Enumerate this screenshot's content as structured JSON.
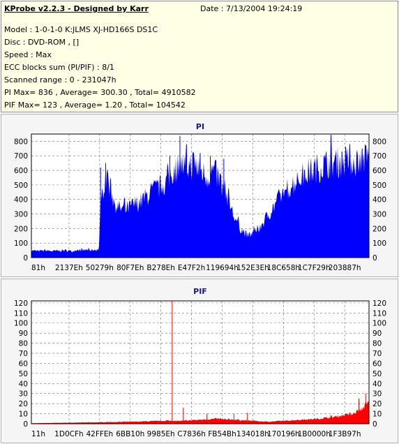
{
  "info": {
    "title": "KProbe v2.2.3 - Designed by Karr",
    "date": "Date : 7/13/2004 19:24:19",
    "lines": [
      "Model : 1-0-1-0 K:JLMS    XJ-HD166S        DS1C",
      "Disc : DVD-ROM ,  []",
      "Speed : Max",
      "ECC blocks sum (PI/PIF) : 8/1",
      "Scanned range : 0 - 231047h",
      "PI Max= 836 , Average= 300.30 , Total= 4910582",
      "PIF Max= 123 , Average= 1.20 , Total= 104542"
    ]
  },
  "chart_data": [
    {
      "type": "area",
      "title": "PI",
      "color": "#0000ff",
      "ylim": [
        0,
        850
      ],
      "yticks": [
        0,
        100,
        200,
        300,
        400,
        500,
        600,
        700,
        800
      ],
      "xticks": [
        "81h",
        "2137Eh",
        "50279h",
        "80F7Eh",
        "B278Eh",
        "E47F2h",
        "119694h",
        "152E3Eh",
        "18C658h",
        "1C7F29h",
        "203887h"
      ],
      "grid": true,
      "profile": [
        [
          0.0,
          50
        ],
        [
          0.02,
          45
        ],
        [
          0.04,
          50
        ],
        [
          0.06,
          45
        ],
        [
          0.08,
          47
        ],
        [
          0.1,
          50
        ],
        [
          0.12,
          45
        ],
        [
          0.14,
          50
        ],
        [
          0.16,
          52
        ],
        [
          0.18,
          52
        ],
        [
          0.2,
          55
        ],
        [
          0.2,
          60
        ],
        [
          0.205,
          350
        ],
        [
          0.215,
          520
        ],
        [
          0.225,
          560
        ],
        [
          0.235,
          470
        ],
        [
          0.245,
          380
        ],
        [
          0.26,
          340
        ],
        [
          0.28,
          330
        ],
        [
          0.3,
          360
        ],
        [
          0.32,
          380
        ],
        [
          0.34,
          420
        ],
        [
          0.36,
          460
        ],
        [
          0.38,
          490
        ],
        [
          0.4,
          520
        ],
        [
          0.42,
          600
        ],
        [
          0.44,
          640
        ],
        [
          0.46,
          620
        ],
        [
          0.48,
          650
        ],
        [
          0.5,
          600
        ],
        [
          0.52,
          560
        ],
        [
          0.54,
          600
        ],
        [
          0.56,
          520
        ],
        [
          0.58,
          430
        ],
        [
          0.6,
          280
        ],
        [
          0.62,
          200
        ],
        [
          0.64,
          150
        ],
        [
          0.66,
          170
        ],
        [
          0.68,
          220
        ],
        [
          0.7,
          290
        ],
        [
          0.72,
          360
        ],
        [
          0.74,
          430
        ],
        [
          0.76,
          480
        ],
        [
          0.78,
          520
        ],
        [
          0.8,
          560
        ],
        [
          0.82,
          590
        ],
        [
          0.84,
          610
        ],
        [
          0.86,
          630
        ],
        [
          0.88,
          650
        ],
        [
          0.9,
          660
        ],
        [
          0.92,
          660
        ],
        [
          0.94,
          670
        ],
        [
          0.96,
          660
        ],
        [
          0.98,
          680
        ],
        [
          1.0,
          700
        ]
      ],
      "spikes": [
        [
          0.2,
          60
        ],
        [
          0.205,
          620
        ],
        [
          0.22,
          650
        ],
        [
          0.41,
          700
        ],
        [
          0.44,
          836
        ],
        [
          0.46,
          780
        ],
        [
          0.5,
          720
        ],
        [
          0.53,
          700
        ],
        [
          0.57,
          680
        ],
        [
          0.92,
          730
        ],
        [
          0.98,
          750
        ],
        [
          0.99,
          760
        ]
      ]
    },
    {
      "type": "area",
      "title": "PIF",
      "color": "#ff0000",
      "ylim": [
        0,
        122
      ],
      "yticks": [
        0,
        10,
        20,
        30,
        40,
        50,
        60,
        70,
        80,
        90,
        100,
        110,
        120
      ],
      "xticks": [
        "11h",
        "1D0CFh",
        "42FFEh",
        "6BB10h",
        "9985Eh",
        "C7836h",
        "FB54Bh",
        "134018h",
        "170196h",
        "1B0000h",
        "1F3B97h"
      ],
      "grid": true,
      "profile": [
        [
          0.0,
          0.5
        ],
        [
          0.1,
          1
        ],
        [
          0.2,
          1.5
        ],
        [
          0.3,
          2
        ],
        [
          0.4,
          3
        ],
        [
          0.45,
          3
        ],
        [
          0.5,
          4
        ],
        [
          0.55,
          5
        ],
        [
          0.6,
          4
        ],
        [
          0.65,
          3
        ],
        [
          0.7,
          2
        ],
        [
          0.75,
          3
        ],
        [
          0.8,
          4
        ],
        [
          0.85,
          5
        ],
        [
          0.9,
          7
        ],
        [
          0.95,
          10
        ],
        [
          0.98,
          15
        ],
        [
          1.0,
          22
        ]
      ],
      "spikes": [
        [
          0.417,
          123
        ],
        [
          0.45,
          16
        ],
        [
          0.52,
          10
        ],
        [
          0.6,
          10
        ],
        [
          0.64,
          11
        ],
        [
          0.97,
          25
        ],
        [
          0.99,
          30
        ]
      ]
    }
  ]
}
